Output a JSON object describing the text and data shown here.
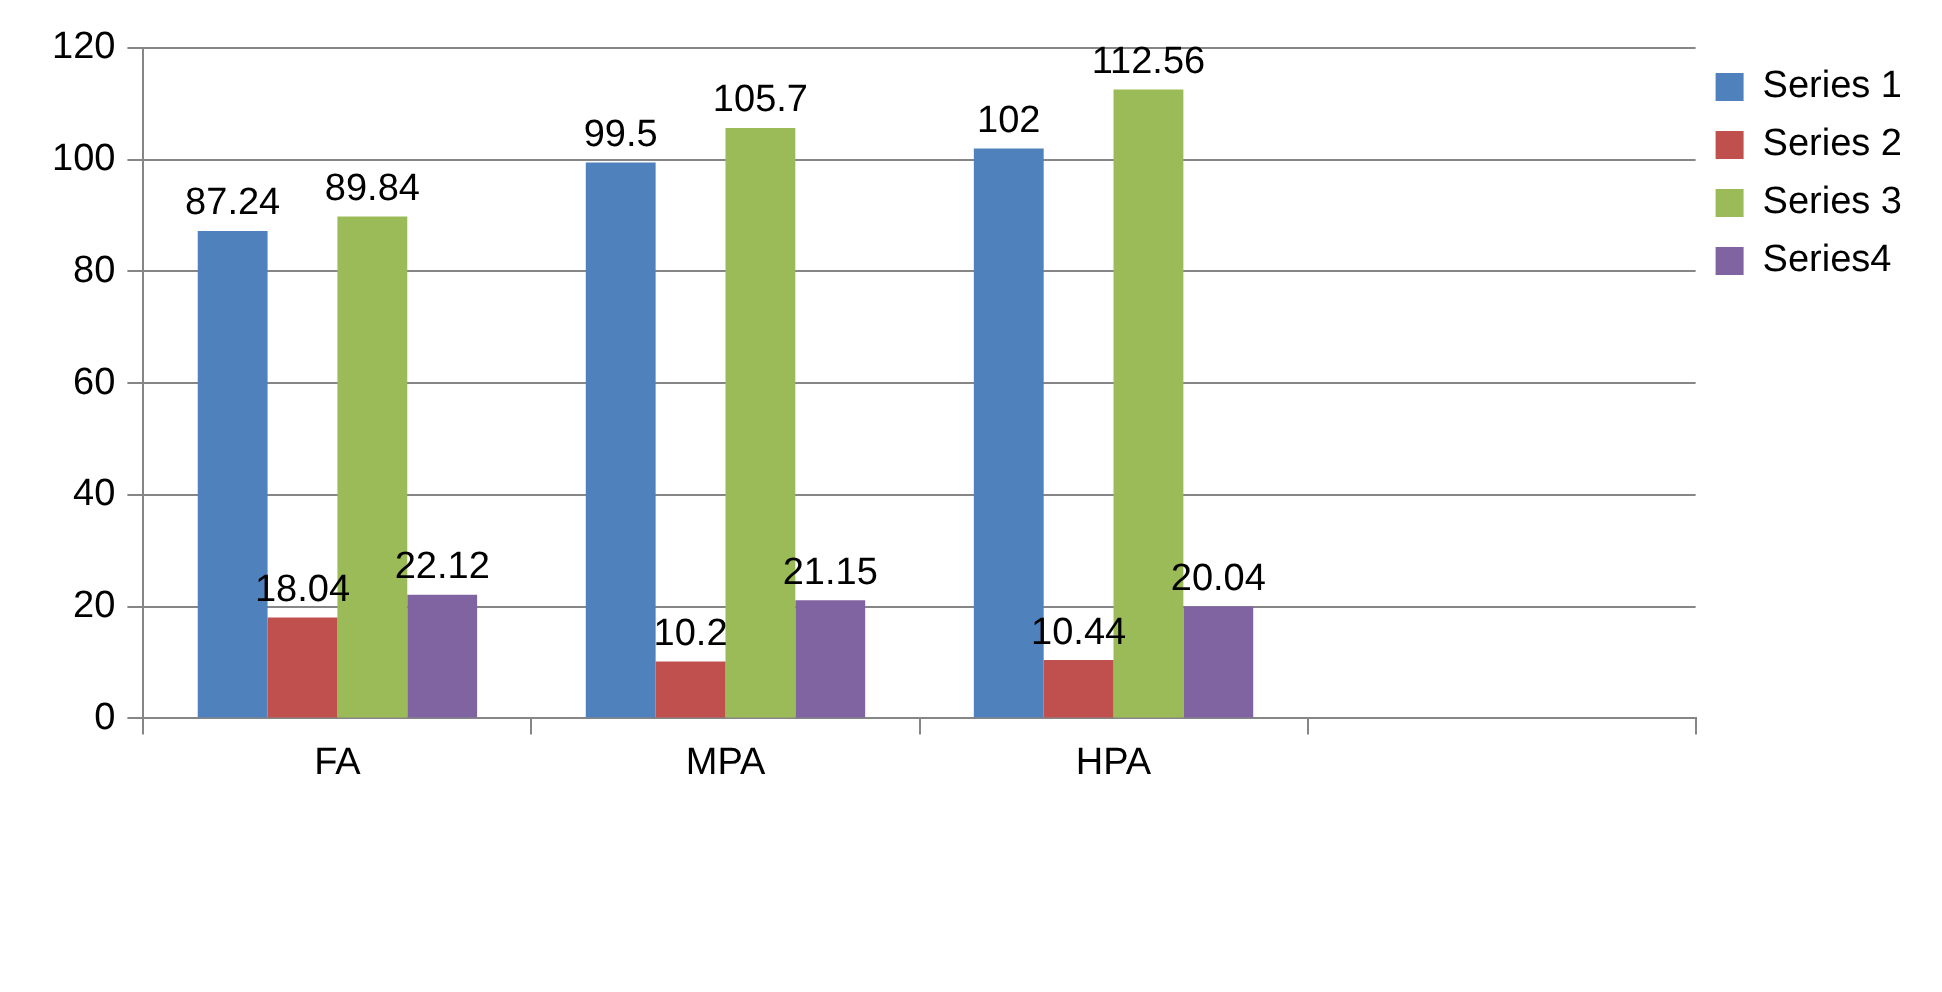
{
  "chart_data": {
    "type": "bar",
    "categories": [
      "FA",
      "MPA",
      "HPA",
      null
    ],
    "series": [
      {
        "name": "Series 1",
        "color": "#4f81bd",
        "values": [
          87.24,
          99.5,
          102,
          null
        ]
      },
      {
        "name": "Series 2",
        "color": "#c0504d",
        "values": [
          18.04,
          10.2,
          10.44,
          null
        ]
      },
      {
        "name": "Series 3",
        "color": "#9bbb59",
        "values": [
          89.84,
          105.7,
          112.56,
          null
        ]
      },
      {
        "name": "Series4",
        "color": "#8064a2",
        "values": [
          22.12,
          21.15,
          20.04,
          null
        ]
      }
    ],
    "ylim": [
      0,
      120
    ],
    "yticks": [
      0,
      20,
      40,
      60,
      80,
      100,
      120
    ],
    "grid": "y",
    "legend": "right",
    "data_labels": true
  }
}
